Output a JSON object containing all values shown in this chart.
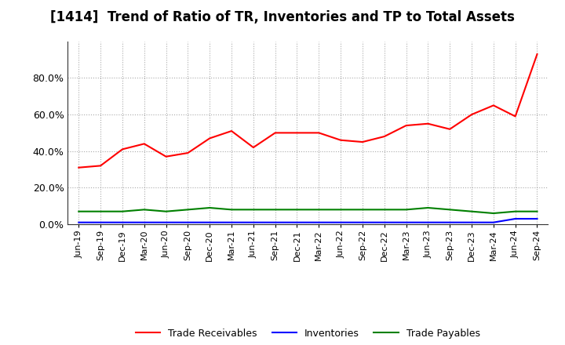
{
  "title": "[1414]  Trend of Ratio of TR, Inventories and TP to Total Assets",
  "x_labels": [
    "Jun-19",
    "Sep-19",
    "Dec-19",
    "Mar-20",
    "Jun-20",
    "Sep-20",
    "Dec-20",
    "Mar-21",
    "Jun-21",
    "Sep-21",
    "Dec-21",
    "Mar-22",
    "Jun-22",
    "Sep-22",
    "Dec-22",
    "Mar-23",
    "Jun-23",
    "Sep-23",
    "Dec-23",
    "Mar-24",
    "Jun-24",
    "Sep-24"
  ],
  "trade_receivables": [
    0.31,
    0.32,
    0.41,
    0.44,
    0.37,
    0.39,
    0.47,
    0.51,
    0.42,
    0.5,
    0.5,
    0.5,
    0.46,
    0.45,
    0.48,
    0.54,
    0.55,
    0.52,
    0.6,
    0.65,
    0.59,
    0.93
  ],
  "inventories": [
    0.01,
    0.01,
    0.01,
    0.01,
    0.01,
    0.01,
    0.01,
    0.01,
    0.01,
    0.01,
    0.01,
    0.01,
    0.01,
    0.01,
    0.01,
    0.01,
    0.01,
    0.01,
    0.01,
    0.01,
    0.03,
    0.03
  ],
  "trade_payables": [
    0.07,
    0.07,
    0.07,
    0.08,
    0.07,
    0.08,
    0.09,
    0.08,
    0.08,
    0.08,
    0.08,
    0.08,
    0.08,
    0.08,
    0.08,
    0.08,
    0.09,
    0.08,
    0.07,
    0.06,
    0.07,
    0.07
  ],
  "tr_color": "#FF0000",
  "inv_color": "#0000FF",
  "tp_color": "#008000",
  "tr_label": "Trade Receivables",
  "inv_label": "Inventories",
  "tp_label": "Trade Payables",
  "ylim": [
    0,
    1.0
  ],
  "yticks": [
    0.0,
    0.2,
    0.4,
    0.6,
    0.8
  ],
  "background_color": "#FFFFFF",
  "plot_bg_color": "#FFFFFF",
  "grid_color": "#AAAAAA",
  "title_fontsize": 12,
  "legend_fontsize": 9,
  "tick_fontsize": 9,
  "xtick_fontsize": 8
}
